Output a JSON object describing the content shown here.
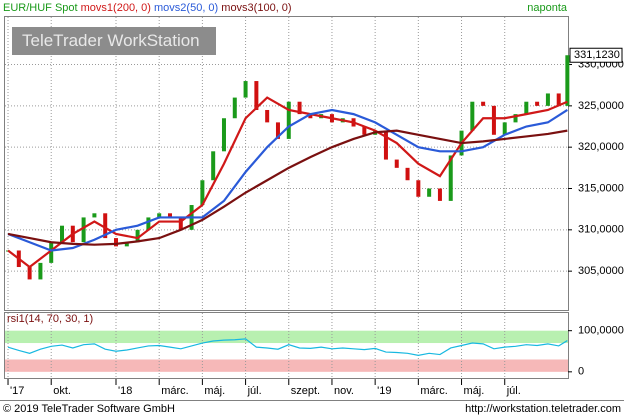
{
  "chart_data": [
    {
      "type": "candles-ma",
      "interval": "naponta",
      "watermark": "TeleTrader WorkStation",
      "last_value": {
        "value": 331.123,
        "label": "331,1230"
      },
      "xlim": [
        6.86,
        32.93
      ],
      "xticks": [
        {
          "value": 7,
          "label": "'17"
        },
        {
          "value": 9,
          "label": "okt."
        },
        {
          "value": 12,
          "label": "'18"
        },
        {
          "value": 14,
          "label": "márc."
        },
        {
          "value": 16,
          "label": "máj."
        },
        {
          "value": 18,
          "label": "júl."
        },
        {
          "value": 20,
          "label": "szept."
        },
        {
          "value": 22,
          "label": "nov."
        },
        {
          "value": 24,
          "label": "'19"
        },
        {
          "value": 26,
          "label": "márc."
        },
        {
          "value": 28,
          "label": "máj."
        },
        {
          "value": 30,
          "label": "júl."
        }
      ],
      "ylim": [
        300.3,
        335.75
      ],
      "yticks": [
        {
          "value": 305,
          "label": "305,0000"
        },
        {
          "value": 310,
          "label": "310,0000"
        },
        {
          "value": 315,
          "label": "315,0000"
        },
        {
          "value": 320,
          "label": "320,0000"
        },
        {
          "value": 325,
          "label": "325,0000"
        },
        {
          "value": 330,
          "label": "330,0000"
        }
      ],
      "grid": true,
      "up_color": "#1a9a1a",
      "down_color": "#d01010",
      "series": [
        {
          "name": "EUR/HUF Spot",
          "color": "#1a9a1a",
          "style": "candles",
          "x": [
            7,
            7.5,
            8,
            8.5,
            9,
            9.5,
            10,
            10.5,
            11,
            11.5,
            12,
            12.5,
            13,
            13.5,
            14,
            14.5,
            15,
            15.5,
            16,
            16.5,
            17,
            17.5,
            18,
            18.5,
            19,
            19.5,
            20,
            20.5,
            21,
            21.5,
            22,
            22.5,
            23,
            23.5,
            24,
            24.5,
            25,
            25.5,
            26,
            26.5,
            27,
            27.5,
            28,
            28.5,
            29,
            29.5,
            30,
            30.5,
            31,
            31.5,
            32,
            32.5,
            32.9
          ],
          "values": [
            307.5,
            305.5,
            304,
            306,
            308.5,
            310.5,
            308.5,
            311.5,
            312,
            309,
            308,
            308.5,
            310,
            311.5,
            312,
            311.5,
            310,
            313,
            316,
            319.5,
            323.5,
            326,
            328,
            324.5,
            323,
            321,
            325.5,
            324,
            323.5,
            324,
            323,
            323.5,
            322.5,
            321.5,
            322,
            318.5,
            317.5,
            316,
            314,
            315,
            313.5,
            319,
            322,
            325.5,
            325,
            321.5,
            323,
            324,
            325.5,
            325,
            326.5,
            325,
            331.123
          ]
        },
        {
          "name": "movs1(200, 0)",
          "color": "#d01818",
          "style": "line",
          "x": [
            7,
            8,
            9,
            10,
            11,
            12,
            13,
            14,
            15,
            16,
            17,
            18,
            19,
            20,
            21,
            22,
            23,
            24,
            25,
            26,
            27,
            28,
            29,
            30,
            31,
            32,
            32.9
          ],
          "values": [
            307.5,
            305.5,
            307.5,
            309.5,
            311,
            309.5,
            309,
            311,
            311,
            313,
            318,
            323.5,
            326,
            324.5,
            324,
            323.5,
            323,
            322,
            320.5,
            318,
            316.5,
            320.5,
            323.5,
            323.5,
            324,
            324.5,
            325.5
          ]
        },
        {
          "name": "movs2(50, 0)",
          "color": "#2a5ad8",
          "style": "line",
          "x": [
            7,
            8,
            9,
            10,
            11,
            12,
            13,
            14,
            15,
            16,
            17,
            18,
            19,
            20,
            21,
            22,
            23,
            24,
            25,
            26,
            27,
            28,
            29,
            30,
            31,
            32,
            32.9
          ],
          "values": [
            309.5,
            308.5,
            307.5,
            307.8,
            308.8,
            310,
            310.5,
            311.5,
            311.5,
            311.5,
            313.5,
            317,
            320,
            322.5,
            324,
            324.5,
            324,
            323,
            321.5,
            320,
            319.5,
            319.5,
            320,
            321.5,
            322.5,
            323,
            324.5
          ]
        },
        {
          "name": "movs3(100, 0)",
          "color": "#7a1010",
          "style": "line",
          "x": [
            7,
            8,
            9,
            10,
            11,
            12,
            13,
            14,
            15,
            16,
            17,
            18,
            19,
            20,
            21,
            22,
            23,
            24,
            25,
            26,
            27,
            28,
            29,
            30,
            31,
            32,
            32.9
          ],
          "values": [
            309.5,
            309,
            308.5,
            308.3,
            308.2,
            308.3,
            308.6,
            309,
            310,
            311.2,
            312.8,
            314.5,
            316,
            317.5,
            318.8,
            320,
            321,
            321.8,
            322,
            321.5,
            321,
            320.5,
            320.7,
            321,
            321.3,
            321.6,
            322
          ]
        }
      ]
    },
    {
      "type": "oscillator",
      "xlim": [
        6.86,
        32.93
      ],
      "ylim": [
        -15,
        143
      ],
      "yticks": [
        {
          "value": 100,
          "label": "100,0000"
        },
        0
      ],
      "bands": [
        {
          "range": [
            70,
            100
          ],
          "color": "#b8f0b0"
        },
        {
          "range": [
            0,
            30
          ],
          "color": "#f6b8b8"
        }
      ],
      "series": [
        {
          "name": "rsi1(14, 70, 30, 1)",
          "color": "#18b8e0",
          "x": [
            7,
            7.5,
            8,
            8.5,
            9,
            9.5,
            10,
            10.5,
            11,
            11.5,
            12,
            12.5,
            13,
            13.5,
            14,
            14.5,
            15,
            15.5,
            16,
            16.5,
            17,
            17.5,
            18,
            18.5,
            19,
            19.5,
            20,
            20.5,
            21,
            21.5,
            22,
            22.5,
            23,
            23.5,
            24,
            24.5,
            25,
            25.5,
            26,
            26.5,
            27,
            27.5,
            28,
            28.5,
            29,
            29.5,
            30,
            30.5,
            31,
            31.5,
            32,
            32.5,
            32.9
          ],
          "values": [
            60,
            52,
            45,
            55,
            62,
            65,
            58,
            66,
            68,
            55,
            50,
            53,
            58,
            63,
            64,
            60,
            56,
            63,
            70,
            75,
            77,
            78,
            80,
            60,
            58,
            55,
            66,
            58,
            57,
            60,
            56,
            58,
            56,
            54,
            57,
            48,
            47,
            45,
            40,
            45,
            42,
            58,
            64,
            70,
            68,
            56,
            60,
            62,
            66,
            64,
            68,
            63,
            76
          ]
        }
      ]
    }
  ],
  "footer": {
    "copyright": "© 2019 TeleTrader Software GmbH",
    "url": "http://workstation.teletrader.com"
  }
}
